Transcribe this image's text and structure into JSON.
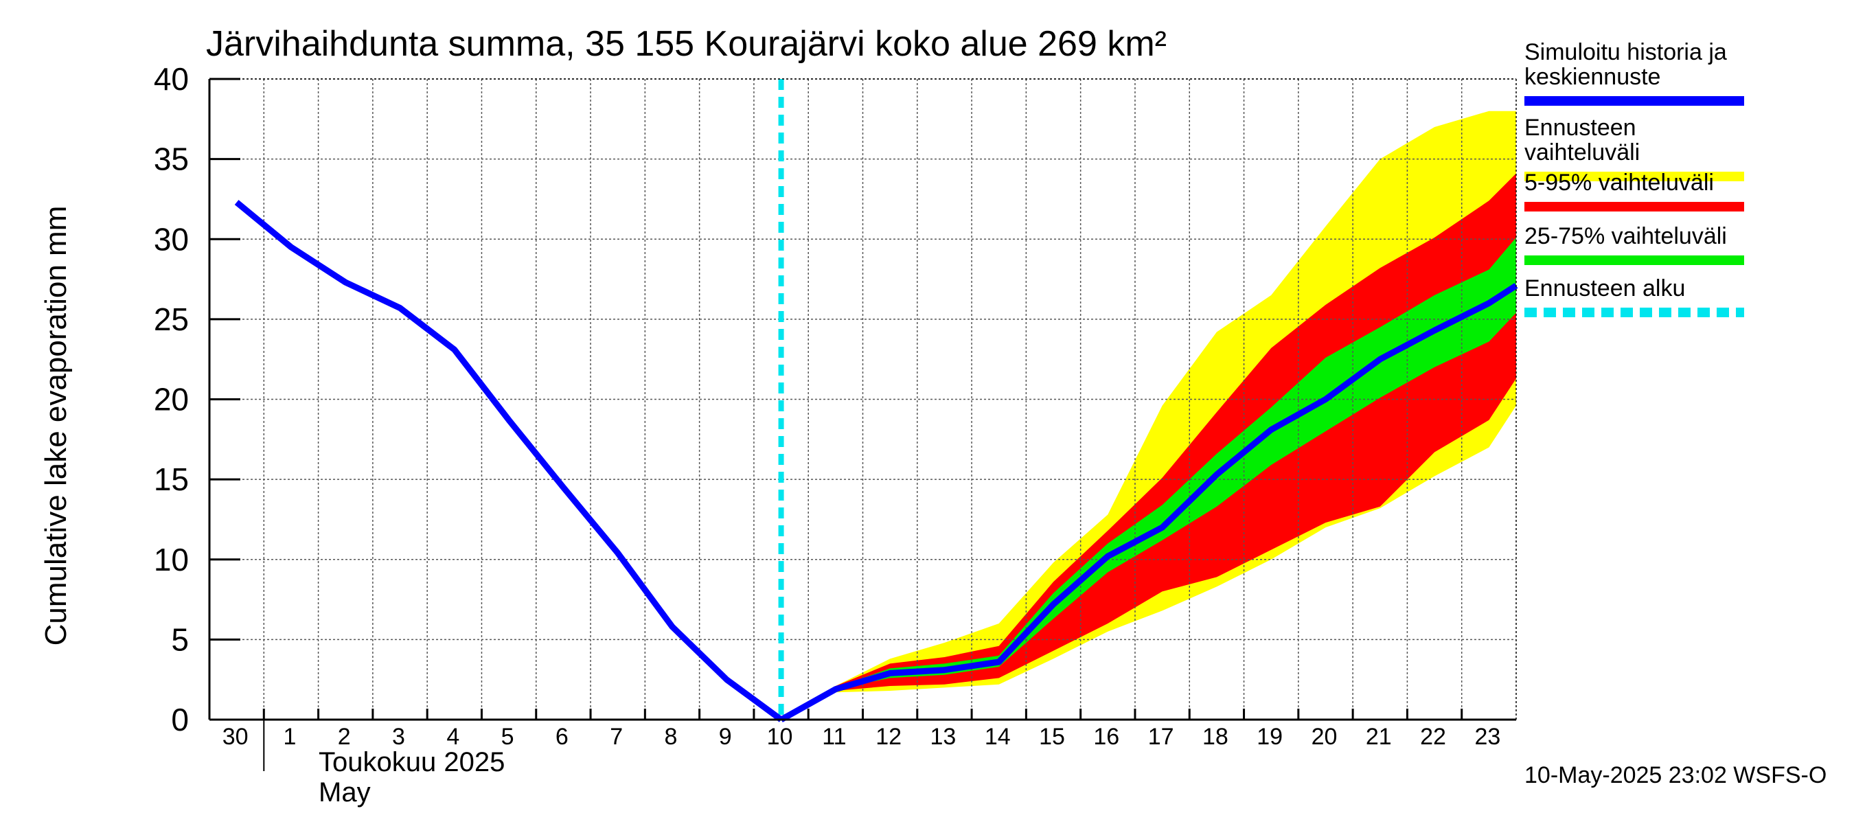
{
  "chart_data": {
    "type": "area",
    "title": "Järvihaihdunta summa, 35 155 Kourajärvi koko alue 269 km²",
    "ylabel": "Cumulative lake evaporation   mm",
    "xlabel": "",
    "ylim": [
      0,
      40
    ],
    "yticks": [
      0,
      5,
      10,
      15,
      20,
      25,
      30,
      35,
      40
    ],
    "grid": true,
    "legend_placement": "right",
    "x_tick_labels": [
      "30",
      "1",
      "2",
      "3",
      "4",
      "5",
      "6",
      "7",
      "8",
      "9",
      "10",
      "11",
      "12",
      "13",
      "14",
      "15",
      "16",
      "17",
      "18",
      "19",
      "20",
      "21",
      "22",
      "23"
    ],
    "month_labels": {
      "finnish": "Toukokuu  2025",
      "english": "May"
    },
    "forecast_start": "10",
    "history": {
      "name": "Simuloitu historia ja keskiennuste",
      "color": "#0000ff",
      "x": [
        "30",
        "1",
        "2",
        "3",
        "4",
        "5",
        "6",
        "7",
        "8",
        "9",
        "10"
      ],
      "values": [
        32.3,
        29.5,
        27.3,
        25.7,
        23.1,
        18.7,
        14.5,
        10.4,
        5.8,
        2.5,
        0.0
      ]
    },
    "forecast_x": [
      "10",
      "11",
      "12",
      "13",
      "14",
      "15",
      "16",
      "17",
      "18",
      "19",
      "20",
      "21",
      "22",
      "23",
      "24"
    ],
    "median": [
      0.0,
      1.9,
      2.9,
      3.1,
      3.6,
      7.2,
      10.2,
      12.0,
      15.3,
      18.1,
      20.0,
      22.5,
      24.3,
      26.0,
      27.1
    ],
    "bands": [
      {
        "name": "Ennusteen vaihteluväli",
        "color": "#ffff00",
        "upper": [
          0.0,
          2.1,
          3.8,
          4.8,
          6.0,
          9.8,
          12.8,
          19.6,
          24.2,
          26.5,
          30.8,
          35.0,
          37.0,
          38.0,
          38.0
        ],
        "lower": [
          0.0,
          1.7,
          1.8,
          2.0,
          2.2,
          3.8,
          5.5,
          6.8,
          8.3,
          10.0,
          12.0,
          13.2,
          15.2,
          17.0,
          19.6
        ]
      },
      {
        "name": "5-95% vaihteluväli",
        "color": "#ff0000",
        "upper": [
          0.0,
          2.1,
          3.5,
          3.9,
          4.6,
          8.6,
          11.8,
          15.1,
          19.2,
          23.2,
          25.9,
          28.2,
          30.1,
          32.4,
          34.1
        ],
        "lower": [
          0.0,
          1.8,
          2.1,
          2.2,
          2.6,
          4.3,
          6.0,
          8.0,
          8.9,
          10.6,
          12.3,
          13.3,
          16.7,
          18.7,
          21.3
        ]
      },
      {
        "name": "25-75% vaihteluväli",
        "color": "#00ee00",
        "upper": [
          0.0,
          2.0,
          3.2,
          3.5,
          4.0,
          7.9,
          11.0,
          13.4,
          16.6,
          19.5,
          22.6,
          24.5,
          26.5,
          28.1,
          30.1
        ],
        "lower": [
          0.0,
          1.9,
          2.6,
          2.8,
          3.3,
          6.3,
          9.2,
          11.2,
          13.3,
          15.9,
          18.0,
          20.1,
          22.0,
          23.6,
          25.4
        ]
      }
    ],
    "median_name": "Simuloitu historia ja keskiennuste",
    "forecast_line": {
      "name": "Ennusteen alku",
      "color": "#00e5ee"
    }
  },
  "legend": {
    "history": "Simuloitu historia ja keskiennuste",
    "range": "Ennusteen vaihteluväli",
    "p5_95": "5-95% vaihteluväli",
    "p25_75": "25-75% vaihteluväli",
    "forecast_start": "Ennusteen alku"
  },
  "colors": {
    "history": "#0000ff",
    "range": "#ffff00",
    "p5_95": "#ff0000",
    "p25_75": "#00ee00",
    "forecast_start": "#00e5ee"
  },
  "timestamp": "10-May-2025 23:02 WSFS-O"
}
